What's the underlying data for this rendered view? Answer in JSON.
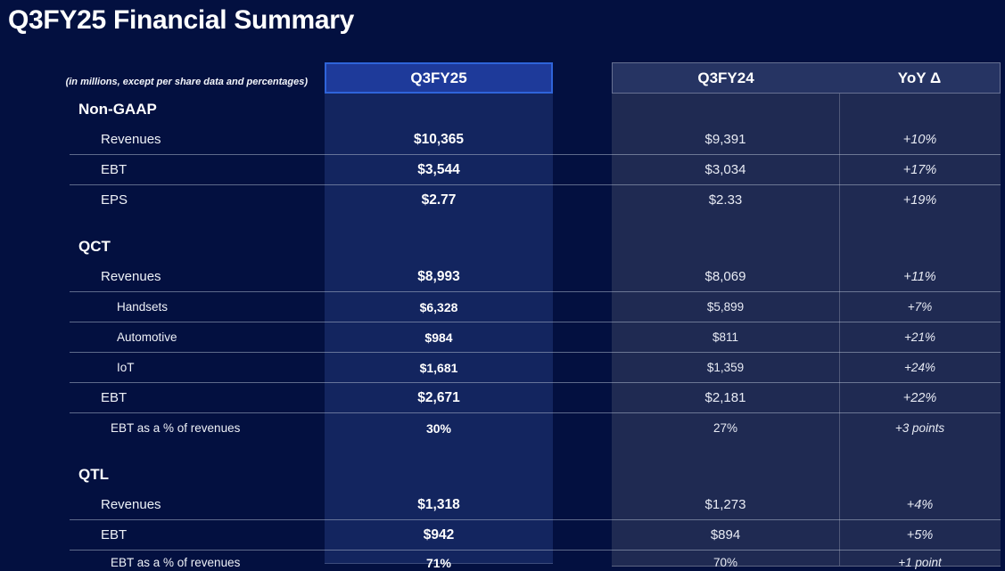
{
  "title": "Q3FY25 Financial Summary",
  "note": "(in millions, except per share data and percentages)",
  "columns": {
    "current": "Q3FY25",
    "prior": "Q3FY24",
    "delta": "YoY Δ"
  },
  "colors": {
    "background": "#031040",
    "panel_current": "#13255f",
    "panel_prior": "#1f2a52",
    "header_current": "#1e3a9a",
    "header_current_border": "#2f64d9",
    "header_prior": "#263463",
    "separator": "rgba(186,195,214,0.5)"
  },
  "table": {
    "rows": [
      {
        "type": "section",
        "label": "Non-GAAP"
      },
      {
        "type": "item",
        "label": "Revenues",
        "q3fy25": "$10,365",
        "q3fy24": "$9,391",
        "yoy": "+10%"
      },
      {
        "type": "item",
        "label": "EBT",
        "q3fy25": "$3,544",
        "q3fy24": "$3,034",
        "yoy": "+17%",
        "sep": true
      },
      {
        "type": "item",
        "label": "EPS",
        "q3fy25": "$2.77",
        "q3fy24": "$2.33",
        "yoy": "+19%",
        "sep": true
      },
      {
        "type": "section",
        "label": "QCT",
        "gap": true
      },
      {
        "type": "item",
        "label": "Revenues",
        "q3fy25": "$8,993",
        "q3fy24": "$8,069",
        "yoy": "+11%"
      },
      {
        "type": "sub",
        "label": "Handsets",
        "q3fy25": "$6,328",
        "q3fy24": "$5,899",
        "yoy": "+7%",
        "sep": true
      },
      {
        "type": "sub",
        "label": "Automotive",
        "q3fy25": "$984",
        "q3fy24": "$811",
        "yoy": "+21%",
        "sep": true
      },
      {
        "type": "sub",
        "label": "IoT",
        "q3fy25": "$1,681",
        "q3fy24": "$1,359",
        "yoy": "+24%",
        "sep": true
      },
      {
        "type": "item",
        "label": "EBT",
        "q3fy25": "$2,671",
        "q3fy24": "$2,181",
        "yoy": "+22%",
        "sep": true
      },
      {
        "type": "pct",
        "label": "EBT as a % of revenues",
        "q3fy25": "30%",
        "q3fy24": "27%",
        "yoy": "+3 points",
        "sep": true
      },
      {
        "type": "section",
        "label": "QTL",
        "gap": true
      },
      {
        "type": "item",
        "label": "Revenues",
        "q3fy25": "$1,318",
        "q3fy24": "$1,273",
        "yoy": "+4%"
      },
      {
        "type": "item",
        "label": "EBT",
        "q3fy25": "$942",
        "q3fy24": "$894",
        "yoy": "+5%",
        "sep": true
      },
      {
        "type": "pct",
        "label": "EBT as a % of revenues",
        "q3fy25": "71%",
        "q3fy24": "70%",
        "yoy": "+1 point",
        "sep": true
      }
    ]
  }
}
